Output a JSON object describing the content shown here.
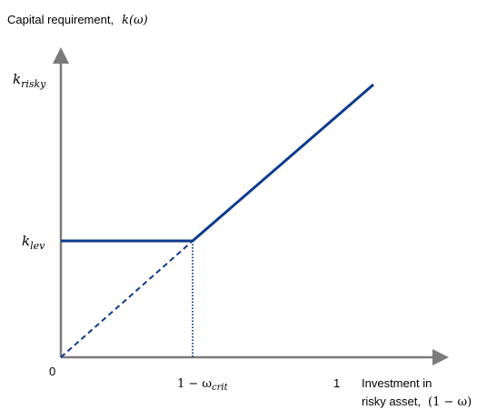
{
  "title": {
    "text": "Capital requirement,",
    "math": "k(ω)"
  },
  "y_axis": {
    "k_risky": {
      "base": "k",
      "sub": "risky"
    },
    "k_lev": {
      "base": "k",
      "sub": "lev"
    }
  },
  "x_axis": {
    "origin": "0",
    "crit": {
      "prefix": "1 − ω",
      "sub": "crit"
    },
    "one": "1",
    "label_line1": "Investment in",
    "label_line2_text": "risky asset,",
    "label_line2_math": "(1 − ω)"
  },
  "colors": {
    "line": "#0d3a8c",
    "axis": "#7a7a7a"
  }
}
